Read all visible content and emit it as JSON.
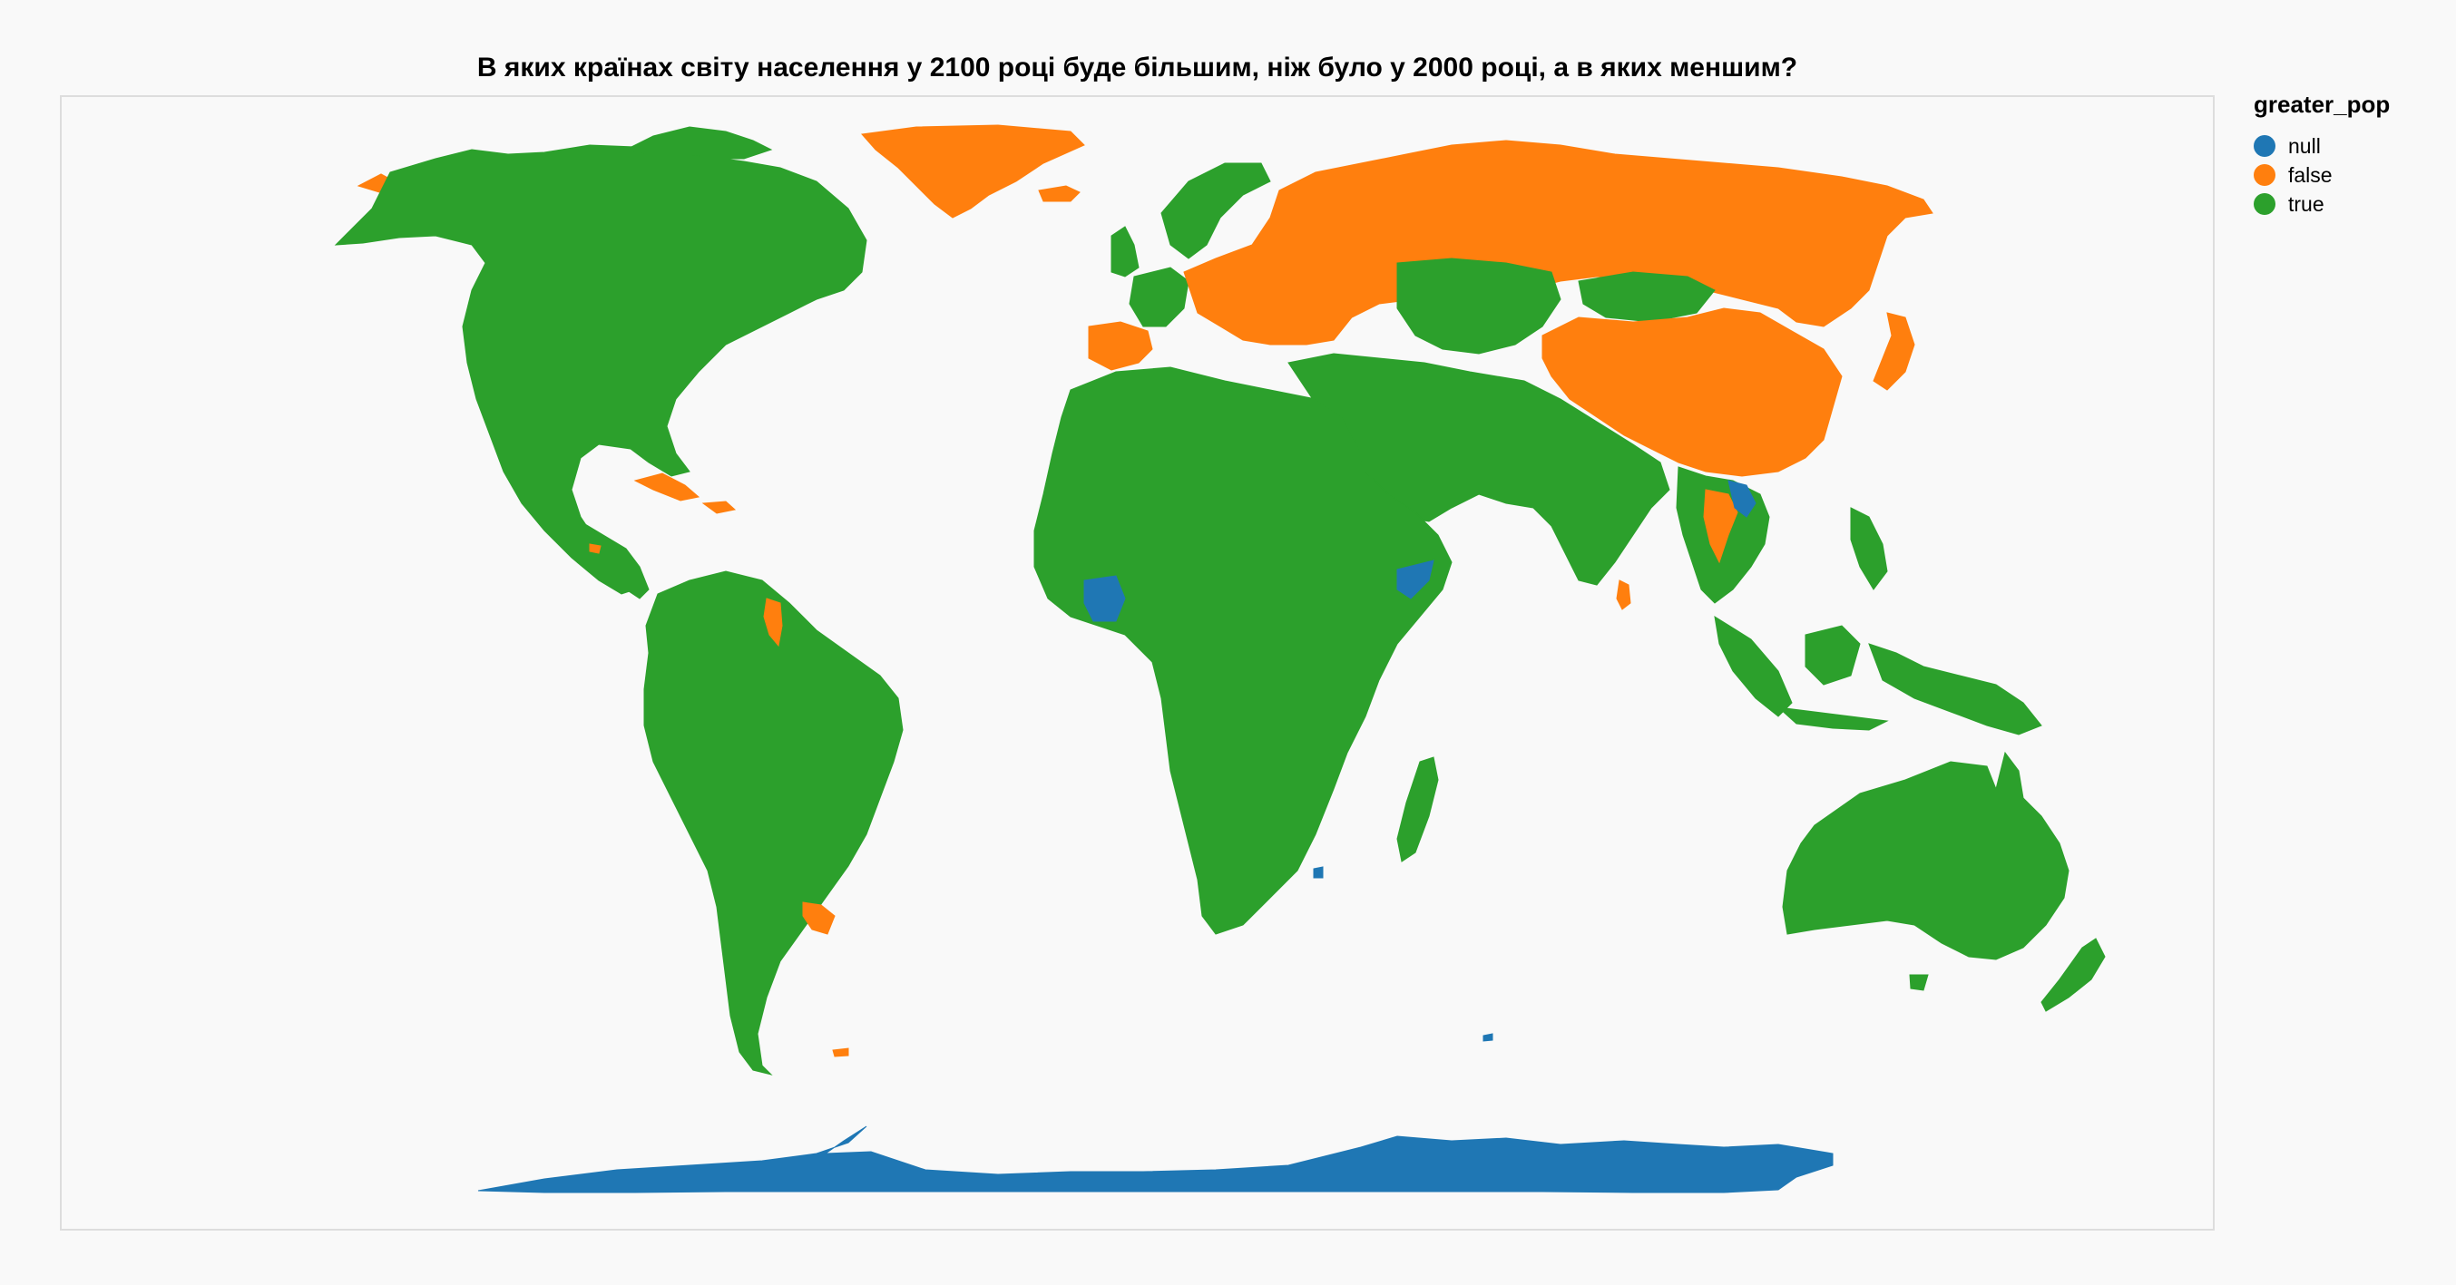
{
  "title": "В яких країнах світу населення у 2100 році буде більшим, ніж було у 2000 році, а в яких меншим?",
  "legend": {
    "title": "greater_pop",
    "items": [
      {
        "label": "null",
        "color": "#1f77b4"
      },
      {
        "label": "false",
        "color": "#ff7f0e"
      },
      {
        "label": "true",
        "color": "#2ca02c"
      }
    ]
  },
  "colors": {
    "null": "#1f77b4",
    "false": "#ff7f0e",
    "true": "#2ca02c",
    "background": "#f9f9f9",
    "frame": "#dddddd"
  }
}
